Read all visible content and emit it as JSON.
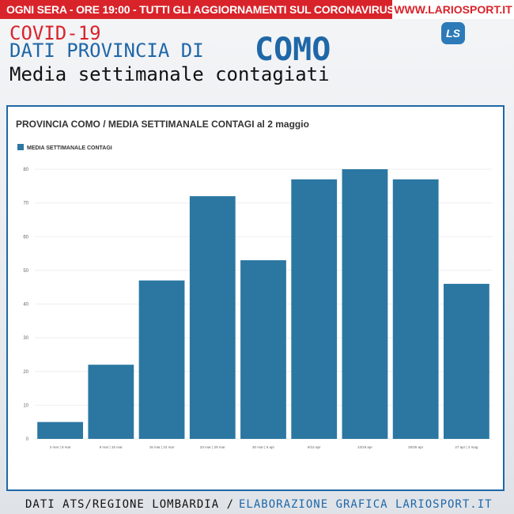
{
  "header": {
    "banner": "OGNI SERA - ORE 19:00 - TUTTI GLI AGGIORNAMENTI SUL CORONAVIRUS -",
    "site": "WWW.LARIOSPORT.IT",
    "logo": "LS",
    "line1": "COVID-19",
    "line2": "DATI PROVINCIA DI",
    "place": "COMO",
    "subtitle": "Media settimanale contagiati"
  },
  "chart_data": {
    "type": "bar",
    "title": "PROVINCIA COMO / MEDIA SETTIMANALE CONTAGI al 2 maggio",
    "categories": [
      "2 mar | 8 mar",
      "9 mar | 15 mar",
      "16 mar | 22 mar",
      "23 mar | 29 mar",
      "30 mar | 5 apr",
      "6/12 apr",
      "13/19 apr",
      "20/26 apr",
      "27 apr | 3 mag"
    ],
    "series": [
      {
        "name": "MEDIA SETTIMANALE CONTAGI",
        "color": "#2b77a2",
        "values": [
          5,
          22,
          47,
          72,
          53,
          77,
          80,
          77,
          46
        ]
      }
    ],
    "ylim": [
      0,
      80
    ],
    "yticks": [
      0,
      10,
      20,
      30,
      40,
      50,
      60,
      70,
      80
    ],
    "grid": true,
    "legend": "top-left"
  },
  "footer": {
    "source": "DATI ATS/REGIONE LOMBARDIA /",
    "credit": "ELABORAZIONE GRAFICA LARIOSPORT.IT"
  }
}
